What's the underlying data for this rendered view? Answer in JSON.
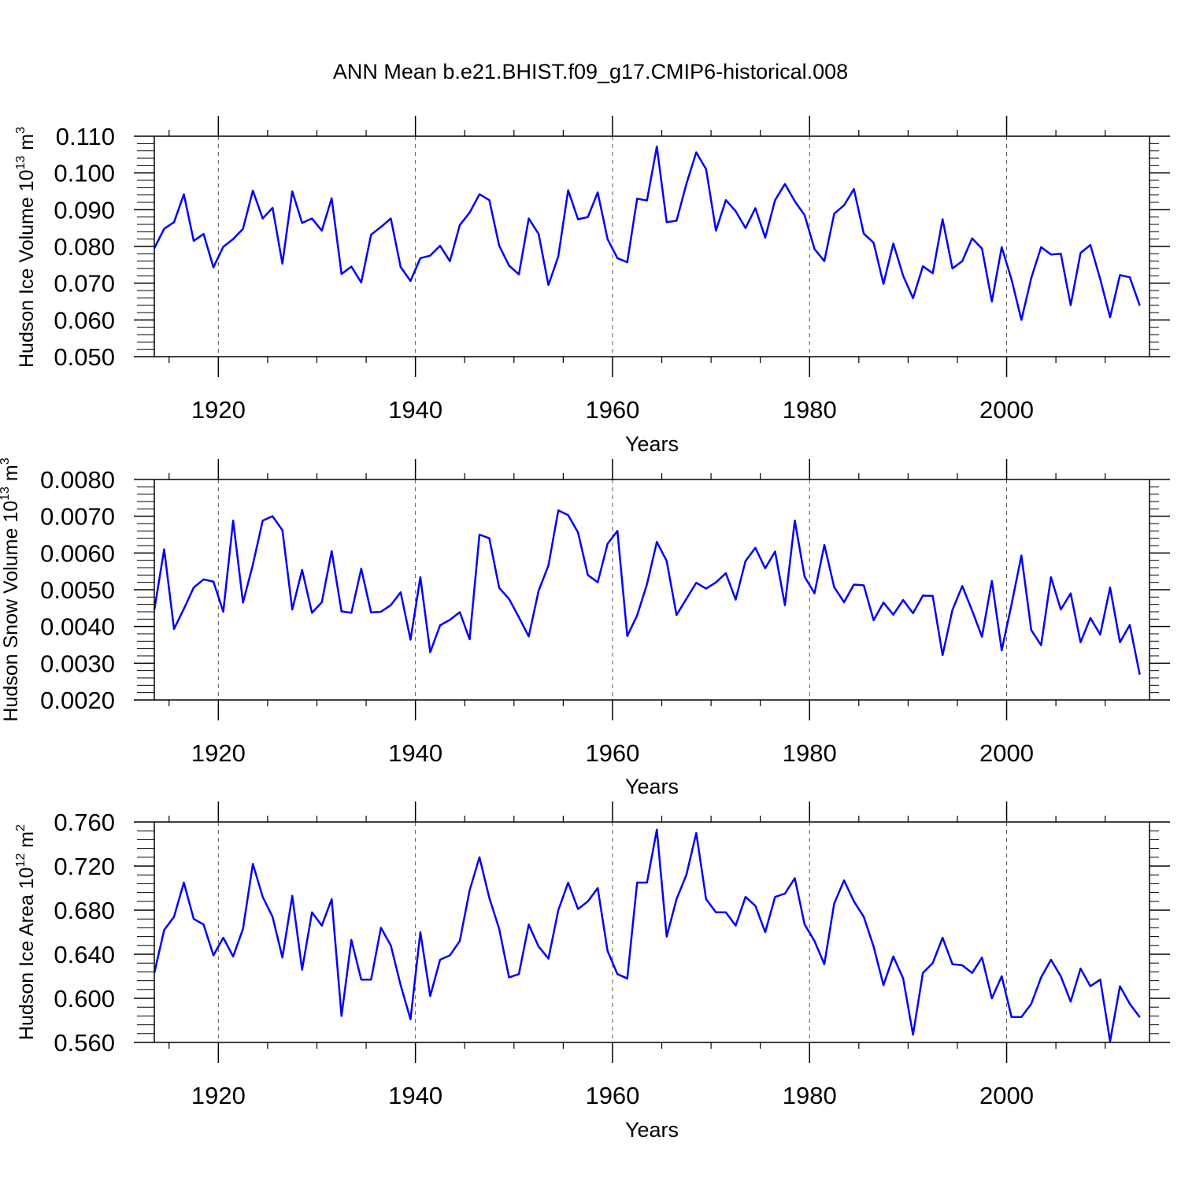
{
  "figure_title": "ANN Mean b.e21.BHIST.f09_g17.CMIP6-historical.008",
  "colors": {
    "series": "#0000ff",
    "axis": "#000000",
    "grid": "#555555"
  },
  "chart_data": [
    {
      "type": "line",
      "title": "ANN Mean b.e21.BHIST.f09_g17.CMIP6-historical.008",
      "ylabel_main": "Hudson Ice Volume 10",
      "ylabel_exp": "13",
      "ylabel_unit": " m",
      "ylabel_unit_exp": "3",
      "xlabel": "Years",
      "xlim": [
        1913.5,
        2014.5
      ],
      "ylim": [
        0.05,
        0.11
      ],
      "xticks": [
        1920,
        1940,
        1960,
        1980,
        2000
      ],
      "xtick_labels": [
        "1920",
        "1940",
        "1960",
        "1980",
        "2000"
      ],
      "yticks": [
        0.05,
        0.06,
        0.07,
        0.08,
        0.09,
        0.1,
        0.11
      ],
      "ytick_labels": [
        "0.050",
        "0.060",
        "0.070",
        "0.080",
        "0.090",
        "0.100",
        "0.110"
      ],
      "grid": "vertical dashed at major x ticks",
      "series": [
        {
          "name": "Hudson Ice Volume",
          "x_start": 1913.5,
          "x_step": 1,
          "values": [
            0.0795,
            0.0848,
            0.0866,
            0.0942,
            0.0815,
            0.0834,
            0.0743,
            0.0799,
            0.082,
            0.0848,
            0.0952,
            0.0876,
            0.0905,
            0.0753,
            0.095,
            0.0864,
            0.0876,
            0.0843,
            0.0931,
            0.0725,
            0.0745,
            0.0702,
            0.0832,
            0.0853,
            0.0876,
            0.0744,
            0.0706,
            0.0768,
            0.0775,
            0.0802,
            0.076,
            0.0858,
            0.0892,
            0.0942,
            0.0926,
            0.0802,
            0.0748,
            0.0724,
            0.0876,
            0.0834,
            0.0695,
            0.0773,
            0.0953,
            0.0874,
            0.088,
            0.0947,
            0.082,
            0.0768,
            0.0757,
            0.093,
            0.0925,
            0.1072,
            0.0866,
            0.087,
            0.097,
            0.1056,
            0.101,
            0.0843,
            0.0926,
            0.0896,
            0.085,
            0.0904,
            0.0824,
            0.0926,
            0.097,
            0.0923,
            0.0885,
            0.0793,
            0.076,
            0.0889,
            0.0912,
            0.0956,
            0.0835,
            0.081,
            0.0698,
            0.0808,
            0.072,
            0.0659,
            0.0746,
            0.0727,
            0.0874,
            0.074,
            0.076,
            0.0822,
            0.0794,
            0.065,
            0.0798,
            0.071,
            0.06,
            0.0714,
            0.0798,
            0.0778,
            0.078,
            0.064,
            0.0782,
            0.0804,
            0.0711,
            0.0607,
            0.0722,
            0.0716,
            0.064
          ]
        }
      ]
    },
    {
      "type": "line",
      "ylabel_main": "Hudson Snow Volume 10",
      "ylabel_exp": "13",
      "ylabel_unit": " m",
      "ylabel_unit_exp": "3",
      "xlabel": "Years",
      "xlim": [
        1913.5,
        2014.5
      ],
      "ylim": [
        0.002,
        0.008
      ],
      "xticks": [
        1920,
        1940,
        1960,
        1980,
        2000
      ],
      "xtick_labels": [
        "1920",
        "1940",
        "1960",
        "1980",
        "2000"
      ],
      "yticks": [
        0.002,
        0.003,
        0.004,
        0.005,
        0.006,
        0.007,
        0.008
      ],
      "ytick_labels": [
        "0.0020",
        "0.0030",
        "0.0040",
        "0.0050",
        "0.0060",
        "0.0070",
        "0.0080"
      ],
      "grid": "vertical dashed at major x ticks",
      "series": [
        {
          "name": "Hudson Snow Volume",
          "x_start": 1913.5,
          "x_step": 1,
          "values": [
            0.00445,
            0.0061,
            0.00393,
            0.00448,
            0.00506,
            0.00528,
            0.00522,
            0.0044,
            0.00688,
            0.00465,
            0.00568,
            0.00688,
            0.007,
            0.00662,
            0.00446,
            0.00554,
            0.00437,
            0.00466,
            0.00605,
            0.00441,
            0.00437,
            0.00557,
            0.00438,
            0.0044,
            0.00458,
            0.00493,
            0.00364,
            0.00534,
            0.0033,
            0.00403,
            0.00418,
            0.00439,
            0.00365,
            0.0065,
            0.0064,
            0.00505,
            0.00475,
            0.00425,
            0.00373,
            0.00497,
            0.00566,
            0.00716,
            0.00703,
            0.00656,
            0.0054,
            0.0052,
            0.00625,
            0.0066,
            0.00374,
            0.0043,
            0.00515,
            0.0063,
            0.00578,
            0.00431,
            0.00475,
            0.00519,
            0.00503,
            0.0052,
            0.00545,
            0.00473,
            0.00578,
            0.00614,
            0.00558,
            0.00604,
            0.00458,
            0.00688,
            0.00535,
            0.0049,
            0.00622,
            0.00507,
            0.00466,
            0.00514,
            0.00512,
            0.00417,
            0.00465,
            0.00432,
            0.00472,
            0.00436,
            0.00484,
            0.00483,
            0.00322,
            0.00445,
            0.0051,
            0.00443,
            0.00372,
            0.00524,
            0.00335,
            0.0046,
            0.00593,
            0.0039,
            0.00349,
            0.00534,
            0.00446,
            0.0049,
            0.00357,
            0.00423,
            0.00378,
            0.00506,
            0.00357,
            0.00404,
            0.0027
          ]
        }
      ]
    },
    {
      "type": "line",
      "ylabel_main": "Hudson Ice Area 10",
      "ylabel_exp": "12",
      "ylabel_unit": " m",
      "ylabel_unit_exp": "2",
      "xlabel": "Years",
      "xlim": [
        1913.5,
        2014.5
      ],
      "ylim": [
        0.56,
        0.76
      ],
      "xticks": [
        1920,
        1940,
        1960,
        1980,
        2000
      ],
      "xtick_labels": [
        "1920",
        "1940",
        "1960",
        "1980",
        "2000"
      ],
      "yticks": [
        0.56,
        0.6,
        0.64,
        0.68,
        0.72,
        0.76
      ],
      "ytick_labels": [
        "0.560",
        "0.600",
        "0.640",
        "0.680",
        "0.720",
        "0.760"
      ],
      "grid": "vertical dashed at major x ticks",
      "series": [
        {
          "name": "Hudson Ice Area",
          "x_start": 1913.5,
          "x_step": 1,
          "values": [
            0.623,
            0.662,
            0.674,
            0.705,
            0.672,
            0.667,
            0.639,
            0.655,
            0.638,
            0.663,
            0.722,
            0.692,
            0.674,
            0.637,
            0.693,
            0.626,
            0.678,
            0.666,
            0.69,
            0.584,
            0.653,
            0.617,
            0.617,
            0.664,
            0.648,
            0.612,
            0.581,
            0.66,
            0.602,
            0.635,
            0.639,
            0.652,
            0.698,
            0.728,
            0.691,
            0.663,
            0.619,
            0.622,
            0.667,
            0.647,
            0.636,
            0.68,
            0.705,
            0.681,
            0.688,
            0.7,
            0.643,
            0.622,
            0.618,
            0.705,
            0.705,
            0.753,
            0.656,
            0.69,
            0.712,
            0.75,
            0.69,
            0.678,
            0.678,
            0.666,
            0.692,
            0.684,
            0.66,
            0.692,
            0.695,
            0.709,
            0.667,
            0.652,
            0.631,
            0.686,
            0.707,
            0.688,
            0.674,
            0.647,
            0.612,
            0.638,
            0.618,
            0.567,
            0.623,
            0.632,
            0.655,
            0.631,
            0.63,
            0.623,
            0.637,
            0.6,
            0.62,
            0.583,
            0.583,
            0.595,
            0.619,
            0.635,
            0.62,
            0.597,
            0.627,
            0.611,
            0.617,
            0.561,
            0.611,
            0.595,
            0.583
          ]
        }
      ]
    }
  ]
}
